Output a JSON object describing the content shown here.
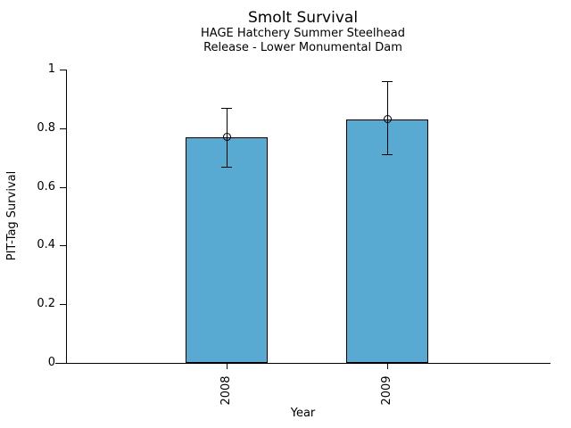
{
  "title": "Smolt Survival",
  "subtitle_line1": "HAGE Hatchery Summer Steelhead",
  "subtitle_line2": "Release - Lower Monumental Dam",
  "chart_data": {
    "type": "bar",
    "title": "Smolt Survival",
    "subtitle": [
      "HAGE Hatchery Summer Steelhead",
      "Release - Lower Monumental Dam"
    ],
    "categories": [
      "2008",
      "2009"
    ],
    "values": [
      0.77,
      0.83
    ],
    "error_bars": [
      {
        "low": 0.67,
        "high": 0.87
      },
      {
        "low": 0.71,
        "high": 0.96
      }
    ],
    "xlabel": "Year",
    "ylabel": "PIT-Tag Survival",
    "ylim": [
      0,
      1
    ],
    "yticks": [
      0,
      0.2,
      0.4,
      0.6,
      0.8,
      1
    ],
    "grid": false,
    "legend_position": "none",
    "bar_color": "#58aad2",
    "bar_border_color": "#000000",
    "axis_color": "#000000",
    "marker": "open-circle"
  }
}
